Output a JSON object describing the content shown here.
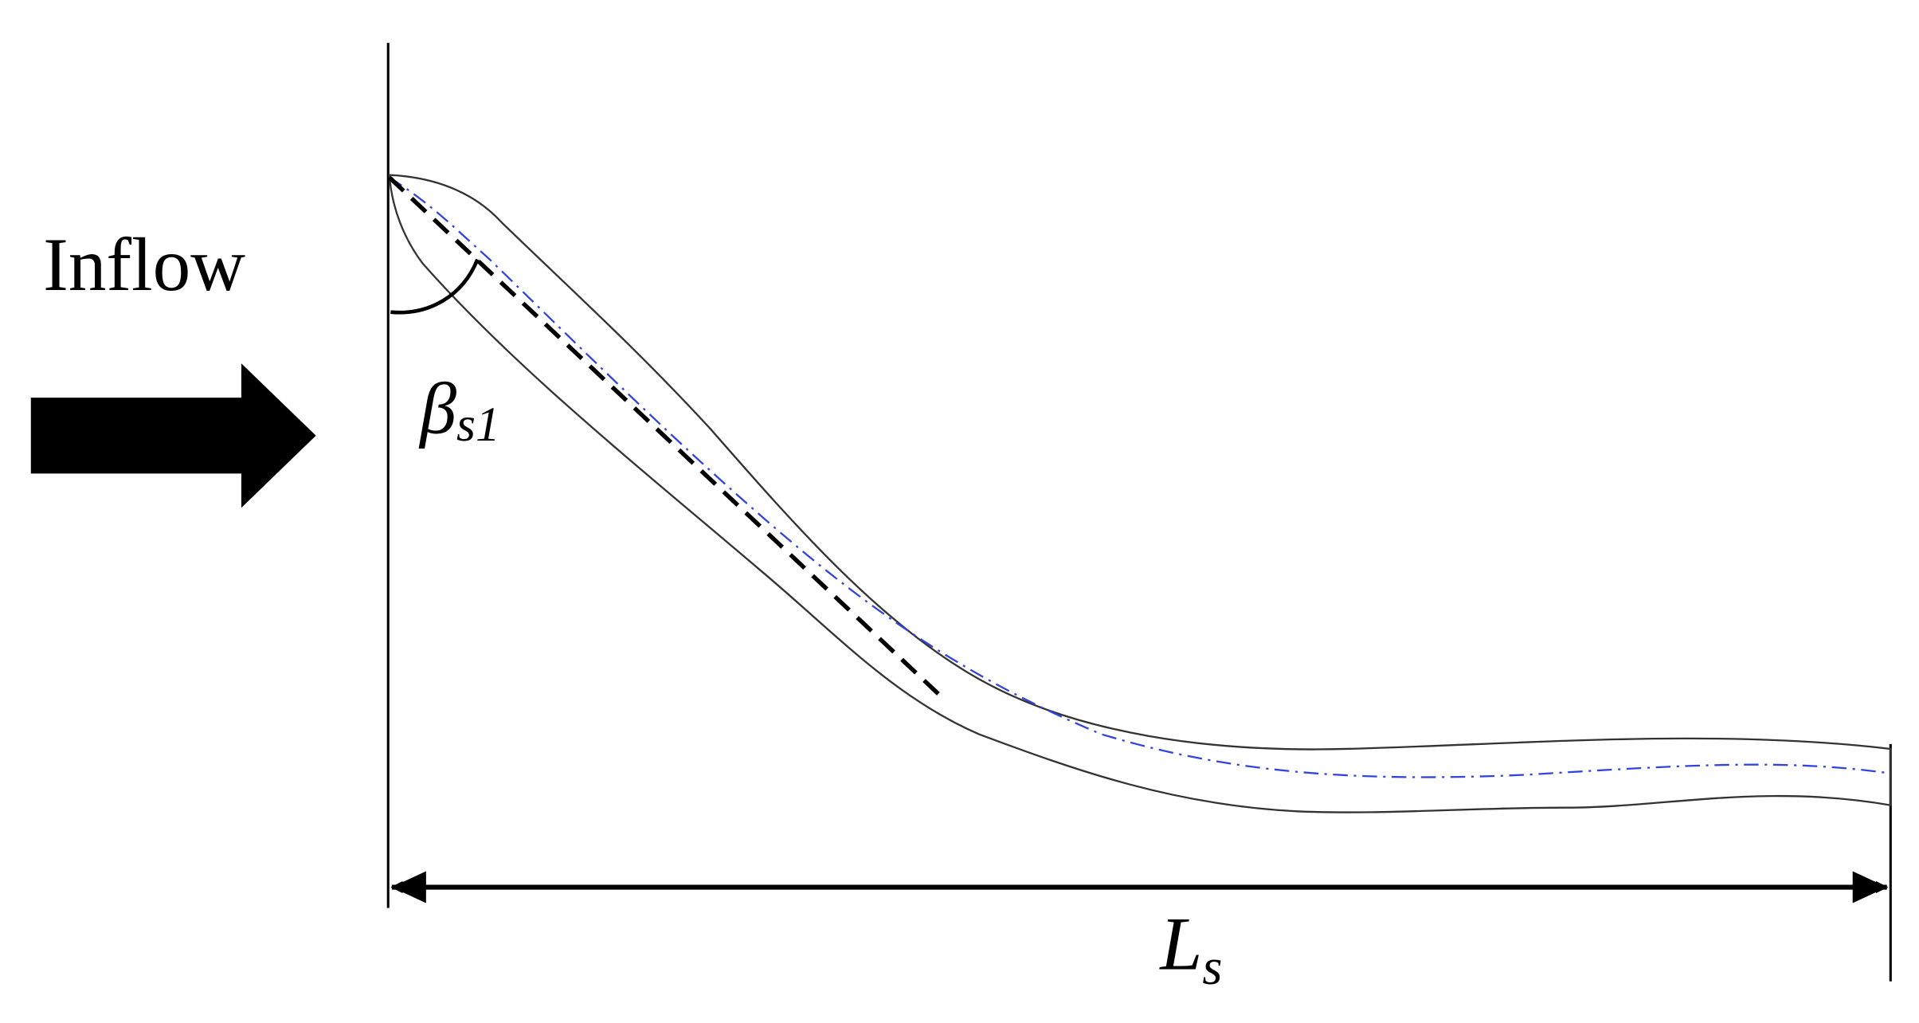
{
  "labels": {
    "inflow": "Inflow",
    "beta": "β",
    "beta_sub": "s1",
    "length": "L",
    "length_sub": "s"
  }
}
